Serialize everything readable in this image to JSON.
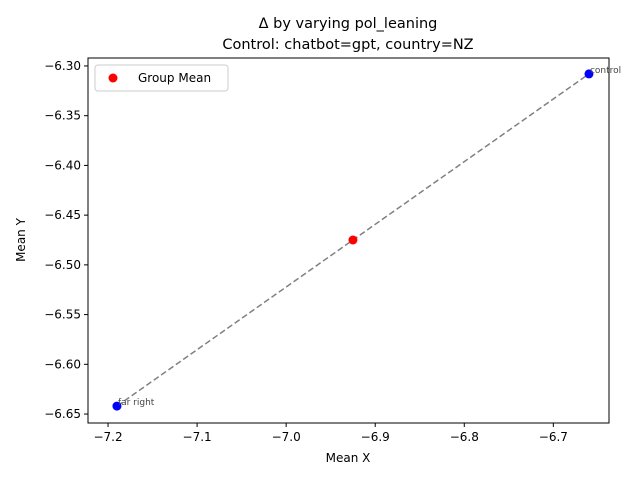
{
  "chart_data": {
    "type": "scatter",
    "title_line1": "Δ by varying pol_leaning",
    "title_line2": "Control: chatbot=gpt, country=NZ",
    "xlabel": "Mean X",
    "ylabel": "Mean Y",
    "xlim": [
      -7.2225,
      -6.6375
    ],
    "ylim": [
      -6.659,
      -6.292
    ],
    "xticks": [
      -7.2,
      -7.1,
      -7.0,
      -6.9,
      -6.8,
      -6.7
    ],
    "yticks": [
      -6.65,
      -6.6,
      -6.55,
      -6.5,
      -6.45,
      -6.4,
      -6.35,
      -6.3
    ],
    "xtick_labels": [
      "−7.2",
      "−7.1",
      "−7.0",
      "−6.9",
      "−6.8",
      "−6.7"
    ],
    "ytick_labels": [
      "−6.65",
      "−6.60",
      "−6.55",
      "−6.50",
      "−6.45",
      "−6.40",
      "−6.35",
      "−6.30"
    ],
    "points": [
      {
        "label": "far right",
        "x": -7.19,
        "y": -6.642,
        "color": "#0000ff"
      },
      {
        "label": "control",
        "x": -6.66,
        "y": -6.308,
        "color": "#0000ff"
      }
    ],
    "group_mean": {
      "x": -6.925,
      "y": -6.475,
      "color": "#ff0000"
    },
    "connector_color": "#808080",
    "legend": {
      "label": "Group Mean",
      "placement": "top-left"
    },
    "grid": false
  }
}
